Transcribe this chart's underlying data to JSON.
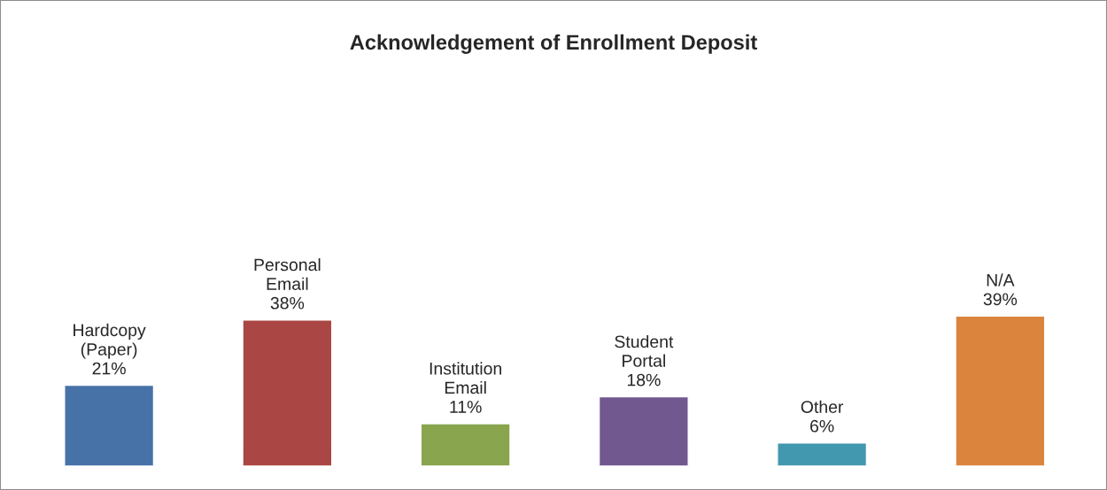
{
  "chart_data": {
    "type": "bar",
    "title": "Acknowledgement of Enrollment Deposit",
    "categories": [
      "Hardcopy\n(Paper)",
      "Personal\nEmail",
      "Institution\nEmail",
      "Student\nPortal",
      "Other",
      "N/A"
    ],
    "values": [
      21,
      38,
      11,
      18,
      6,
      39
    ],
    "colors": [
      "#4672a8",
      "#aa4643",
      "#89a54e",
      "#71588f",
      "#4198af",
      "#db843d"
    ],
    "value_labels": [
      "21%",
      "38%",
      "11%",
      "18%",
      "6%",
      "39%"
    ],
    "data_labels": false
  }
}
